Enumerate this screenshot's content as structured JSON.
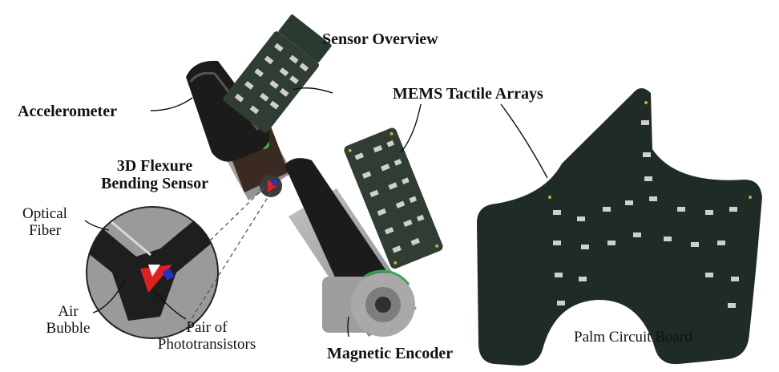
{
  "title": "Sensor Overview",
  "labels": {
    "mems": "MEMS Tactile Arrays",
    "accelerometer": "Accelerometer",
    "flexure_line1": "3D Flexure",
    "flexure_line2": "Bending Sensor",
    "optical_line1": "Optical",
    "optical_line2": "Fiber",
    "air_line1": "Air",
    "air_line2": "Bubble",
    "pair_line1": "Pair of",
    "pair_line2": "Phototransistors",
    "magnetic": "Magnetic Encoder",
    "palm": "Palm Circuit Board"
  },
  "colors": {
    "pcb": "#1f2b26",
    "pcb_board": "#2f3d33",
    "finger_dark": "#1c1c1c",
    "finger_gray": "#8a8a8a",
    "red": "#e0201f",
    "blue": "#2233cc"
  }
}
